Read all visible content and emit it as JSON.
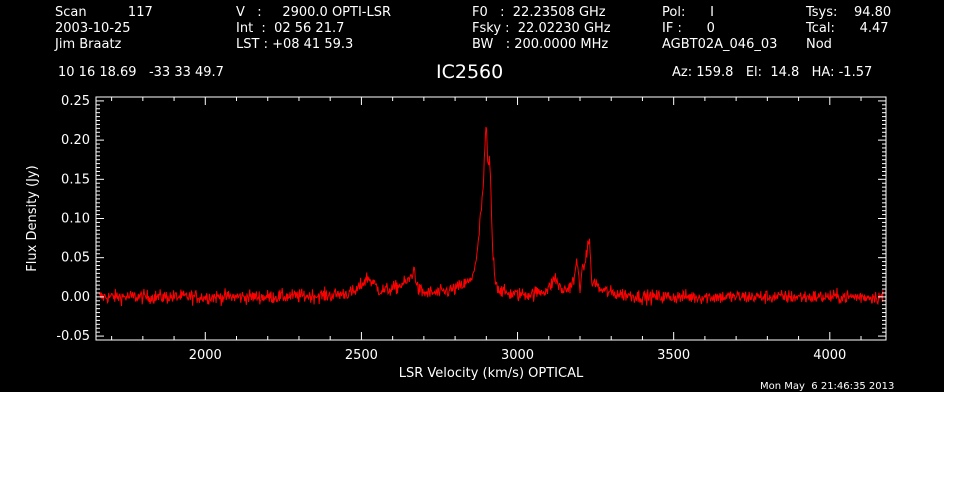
{
  "header": {
    "c1": [
      "Scan          117",
      "2003-10-25",
      "Jim Braatz"
    ],
    "c2": [
      "V   :     2900.0 OPTI-LSR",
      "Int  :  02 56 21.7",
      "LST : +08 41 59.3"
    ],
    "c3": [
      "F0   :  22.23508 GHz",
      "Fsky :  22.02230 GHz",
      "BW   : 200.0000 MHz"
    ],
    "c4": [
      "Pol:      I",
      "IF :      0",
      "AGBT02A_046_03"
    ],
    "c5": [
      "Tsys:    94.80",
      "Tcal:      4.47",
      "Nod"
    ],
    "coords": "10 16 18.69   -33 33 49.7",
    "source": "IC2560",
    "azelha": "Az: 159.8   El:  14.8   HA: -1.57",
    "timestamp": "Mon May  6 21:46:35 2013"
  },
  "colors": {
    "background": "#000000",
    "axes": "#ffffff",
    "trace": "#ff0000"
  },
  "chart_data": {
    "type": "line",
    "title": "IC2560",
    "xlabel": "LSR Velocity (km/s) OPTICAL",
    "ylabel": "Flux Density (Jy)",
    "xlim": [
      1650,
      4180
    ],
    "ylim": [
      -0.055,
      0.255
    ],
    "xticks": [
      2000,
      2500,
      3000,
      3500,
      4000
    ],
    "yticks": [
      -0.05,
      0.0,
      0.05,
      0.1,
      0.15,
      0.2,
      0.25
    ],
    "ytick_labels": [
      "-0.05",
      "0.00",
      "0.05",
      "0.10",
      "0.15",
      "0.20",
      "0.25"
    ],
    "x_range_data": [
      1660,
      4170
    ],
    "noise_rms": 0.0045,
    "series": [
      {
        "x": [
          1660,
          1800,
          2000,
          2200,
          2400,
          2480,
          2520,
          2560,
          2600,
          2650,
          2670,
          2680,
          2700,
          2750,
          2800,
          2850,
          2870,
          2890,
          2900,
          2905,
          2910,
          2915,
          2920,
          2930,
          2940,
          2960,
          3000,
          3050,
          3100,
          3120,
          3140,
          3160,
          3180,
          3190,
          3200,
          3210,
          3220,
          3225,
          3230,
          3235,
          3240,
          3250,
          3260,
          3300,
          3400,
          3600,
          3800,
          4000,
          4170
        ],
        "y": [
          0.0,
          0.0,
          0.0,
          0.0,
          0.002,
          0.006,
          0.025,
          0.008,
          0.01,
          0.02,
          0.035,
          0.01,
          0.005,
          0.005,
          0.01,
          0.02,
          0.05,
          0.14,
          0.225,
          0.16,
          0.18,
          0.13,
          0.06,
          0.02,
          0.01,
          0.005,
          0.003,
          0.004,
          0.01,
          0.025,
          0.008,
          0.01,
          0.02,
          0.045,
          0.015,
          0.035,
          0.05,
          0.065,
          0.08,
          0.03,
          0.015,
          0.02,
          0.01,
          0.005,
          0.0,
          0.0,
          0.0,
          0.0,
          0.0
        ]
      }
    ]
  }
}
